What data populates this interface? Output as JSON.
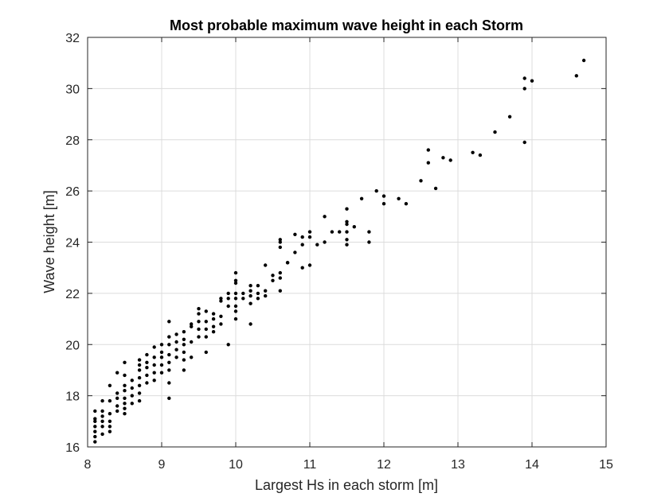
{
  "chart_data": {
    "type": "scatter",
    "title": "Most probable maximum wave height in each Storm",
    "xlabel": "Largest Hs in each storm [m]",
    "ylabel": "Wave height [m]",
    "xlim": [
      8,
      15
    ],
    "ylim": [
      16,
      32
    ],
    "xticks": [
      8,
      9,
      10,
      11,
      12,
      13,
      14,
      15
    ],
    "yticks": [
      16,
      18,
      20,
      22,
      24,
      26,
      28,
      30,
      32
    ],
    "grid": true,
    "colors": {
      "marker": "#000000",
      "grid": "#dcdcdc",
      "axis": "#262626",
      "background": "#ffffff"
    },
    "series": [
      {
        "points": [
          [
            8.1,
            16.2
          ],
          [
            8.1,
            16.4
          ],
          [
            8.1,
            16.6
          ],
          [
            8.1,
            16.8
          ],
          [
            8.1,
            17.0
          ],
          [
            8.1,
            17.1
          ],
          [
            8.1,
            17.4
          ],
          [
            8.2,
            16.5
          ],
          [
            8.2,
            16.8
          ],
          [
            8.2,
            17.0
          ],
          [
            8.2,
            17.2
          ],
          [
            8.2,
            17.4
          ],
          [
            8.2,
            17.8
          ],
          [
            8.3,
            16.6
          ],
          [
            8.3,
            16.8
          ],
          [
            8.3,
            17.0
          ],
          [
            8.3,
            17.3
          ],
          [
            8.3,
            17.8
          ],
          [
            8.3,
            18.4
          ],
          [
            8.4,
            17.4
          ],
          [
            8.4,
            17.6
          ],
          [
            8.4,
            17.9
          ],
          [
            8.4,
            18.1
          ],
          [
            8.4,
            18.9
          ],
          [
            8.5,
            17.3
          ],
          [
            8.5,
            17.5
          ],
          [
            8.5,
            17.7
          ],
          [
            8.5,
            17.9
          ],
          [
            8.5,
            18.2
          ],
          [
            8.5,
            18.4
          ],
          [
            8.5,
            18.8
          ],
          [
            8.5,
            19.3
          ],
          [
            8.6,
            17.7
          ],
          [
            8.6,
            18.0
          ],
          [
            8.6,
            18.3
          ],
          [
            8.6,
            18.6
          ],
          [
            8.7,
            17.8
          ],
          [
            8.7,
            18.1
          ],
          [
            8.7,
            18.4
          ],
          [
            8.7,
            18.7
          ],
          [
            8.7,
            19.0
          ],
          [
            8.7,
            19.2
          ],
          [
            8.7,
            19.4
          ],
          [
            8.8,
            18.5
          ],
          [
            8.8,
            18.8
          ],
          [
            8.8,
            19.1
          ],
          [
            8.8,
            19.3
          ],
          [
            8.8,
            19.6
          ],
          [
            8.9,
            18.6
          ],
          [
            8.9,
            18.9
          ],
          [
            8.9,
            19.2
          ],
          [
            8.9,
            19.5
          ],
          [
            8.9,
            19.9
          ],
          [
            9.0,
            18.9
          ],
          [
            9.0,
            19.2
          ],
          [
            9.0,
            19.5
          ],
          [
            9.0,
            19.7
          ],
          [
            9.0,
            20.0
          ],
          [
            9.1,
            17.9
          ],
          [
            9.1,
            18.5
          ],
          [
            9.1,
            19.0
          ],
          [
            9.1,
            19.3
          ],
          [
            9.1,
            19.6
          ],
          [
            9.1,
            20.0
          ],
          [
            9.1,
            20.3
          ],
          [
            9.1,
            20.9
          ],
          [
            9.2,
            19.5
          ],
          [
            9.2,
            19.8
          ],
          [
            9.2,
            20.1
          ],
          [
            9.2,
            20.4
          ],
          [
            9.3,
            19.0
          ],
          [
            9.3,
            19.4
          ],
          [
            9.3,
            19.7
          ],
          [
            9.3,
            20.0
          ],
          [
            9.3,
            20.2
          ],
          [
            9.3,
            20.5
          ],
          [
            9.4,
            19.5
          ],
          [
            9.4,
            20.1
          ],
          [
            9.4,
            20.7
          ],
          [
            9.4,
            20.8
          ],
          [
            9.5,
            20.3
          ],
          [
            9.5,
            20.6
          ],
          [
            9.5,
            20.9
          ],
          [
            9.5,
            21.2
          ],
          [
            9.5,
            21.4
          ],
          [
            9.6,
            19.7
          ],
          [
            9.6,
            20.3
          ],
          [
            9.6,
            20.6
          ],
          [
            9.6,
            20.9
          ],
          [
            9.6,
            21.3
          ],
          [
            9.7,
            20.5
          ],
          [
            9.7,
            20.7
          ],
          [
            9.7,
            21.0
          ],
          [
            9.7,
            21.2
          ],
          [
            9.8,
            20.8
          ],
          [
            9.8,
            21.1
          ],
          [
            9.8,
            21.7
          ],
          [
            9.8,
            21.8
          ],
          [
            9.9,
            20.0
          ],
          [
            9.9,
            21.5
          ],
          [
            9.9,
            21.8
          ],
          [
            9.9,
            22.0
          ],
          [
            10.0,
            21.0
          ],
          [
            10.0,
            21.3
          ],
          [
            10.0,
            21.5
          ],
          [
            10.0,
            21.8
          ],
          [
            10.0,
            22.0
          ],
          [
            10.0,
            22.4
          ],
          [
            10.0,
            22.5
          ],
          [
            10.0,
            22.8
          ],
          [
            10.1,
            21.8
          ],
          [
            10.1,
            22.0
          ],
          [
            10.2,
            20.8
          ],
          [
            10.2,
            21.6
          ],
          [
            10.2,
            21.9
          ],
          [
            10.2,
            22.1
          ],
          [
            10.2,
            22.3
          ],
          [
            10.3,
            21.8
          ],
          [
            10.3,
            22.0
          ],
          [
            10.3,
            22.3
          ],
          [
            10.4,
            21.9
          ],
          [
            10.4,
            22.1
          ],
          [
            10.4,
            23.1
          ],
          [
            10.5,
            22.5
          ],
          [
            10.5,
            22.7
          ],
          [
            10.6,
            22.1
          ],
          [
            10.6,
            22.6
          ],
          [
            10.6,
            22.8
          ],
          [
            10.6,
            23.8
          ],
          [
            10.6,
            24.0
          ],
          [
            10.6,
            24.1
          ],
          [
            10.7,
            23.2
          ],
          [
            10.7,
            23.2
          ],
          [
            10.8,
            23.6
          ],
          [
            10.8,
            24.3
          ],
          [
            10.9,
            23.0
          ],
          [
            10.9,
            23.9
          ],
          [
            10.9,
            24.2
          ],
          [
            11.0,
            23.1
          ],
          [
            11.0,
            24.2
          ],
          [
            11.0,
            24.4
          ],
          [
            11.1,
            23.9
          ],
          [
            11.2,
            24.0
          ],
          [
            11.2,
            25.0
          ],
          [
            11.3,
            24.4
          ],
          [
            11.4,
            24.4
          ],
          [
            11.5,
            23.9
          ],
          [
            11.5,
            24.1
          ],
          [
            11.5,
            24.4
          ],
          [
            11.5,
            24.7
          ],
          [
            11.5,
            24.8
          ],
          [
            11.5,
            25.3
          ],
          [
            11.6,
            24.6
          ],
          [
            11.7,
            25.7
          ],
          [
            11.8,
            24.0
          ],
          [
            11.8,
            24.4
          ],
          [
            11.9,
            26.0
          ],
          [
            12.0,
            25.5
          ],
          [
            12.0,
            25.8
          ],
          [
            12.2,
            25.7
          ],
          [
            12.3,
            25.5
          ],
          [
            12.5,
            26.4
          ],
          [
            12.6,
            27.1
          ],
          [
            12.6,
            27.6
          ],
          [
            12.7,
            26.1
          ],
          [
            12.8,
            27.3
          ],
          [
            12.9,
            27.2
          ],
          [
            13.2,
            27.5
          ],
          [
            13.3,
            27.4
          ],
          [
            13.5,
            28.3
          ],
          [
            13.7,
            28.9
          ],
          [
            13.9,
            27.9
          ],
          [
            13.9,
            30.0
          ],
          [
            13.9,
            30.4
          ],
          [
            14.0,
            30.3
          ],
          [
            14.6,
            30.5
          ],
          [
            14.7,
            31.1
          ]
        ]
      }
    ]
  }
}
